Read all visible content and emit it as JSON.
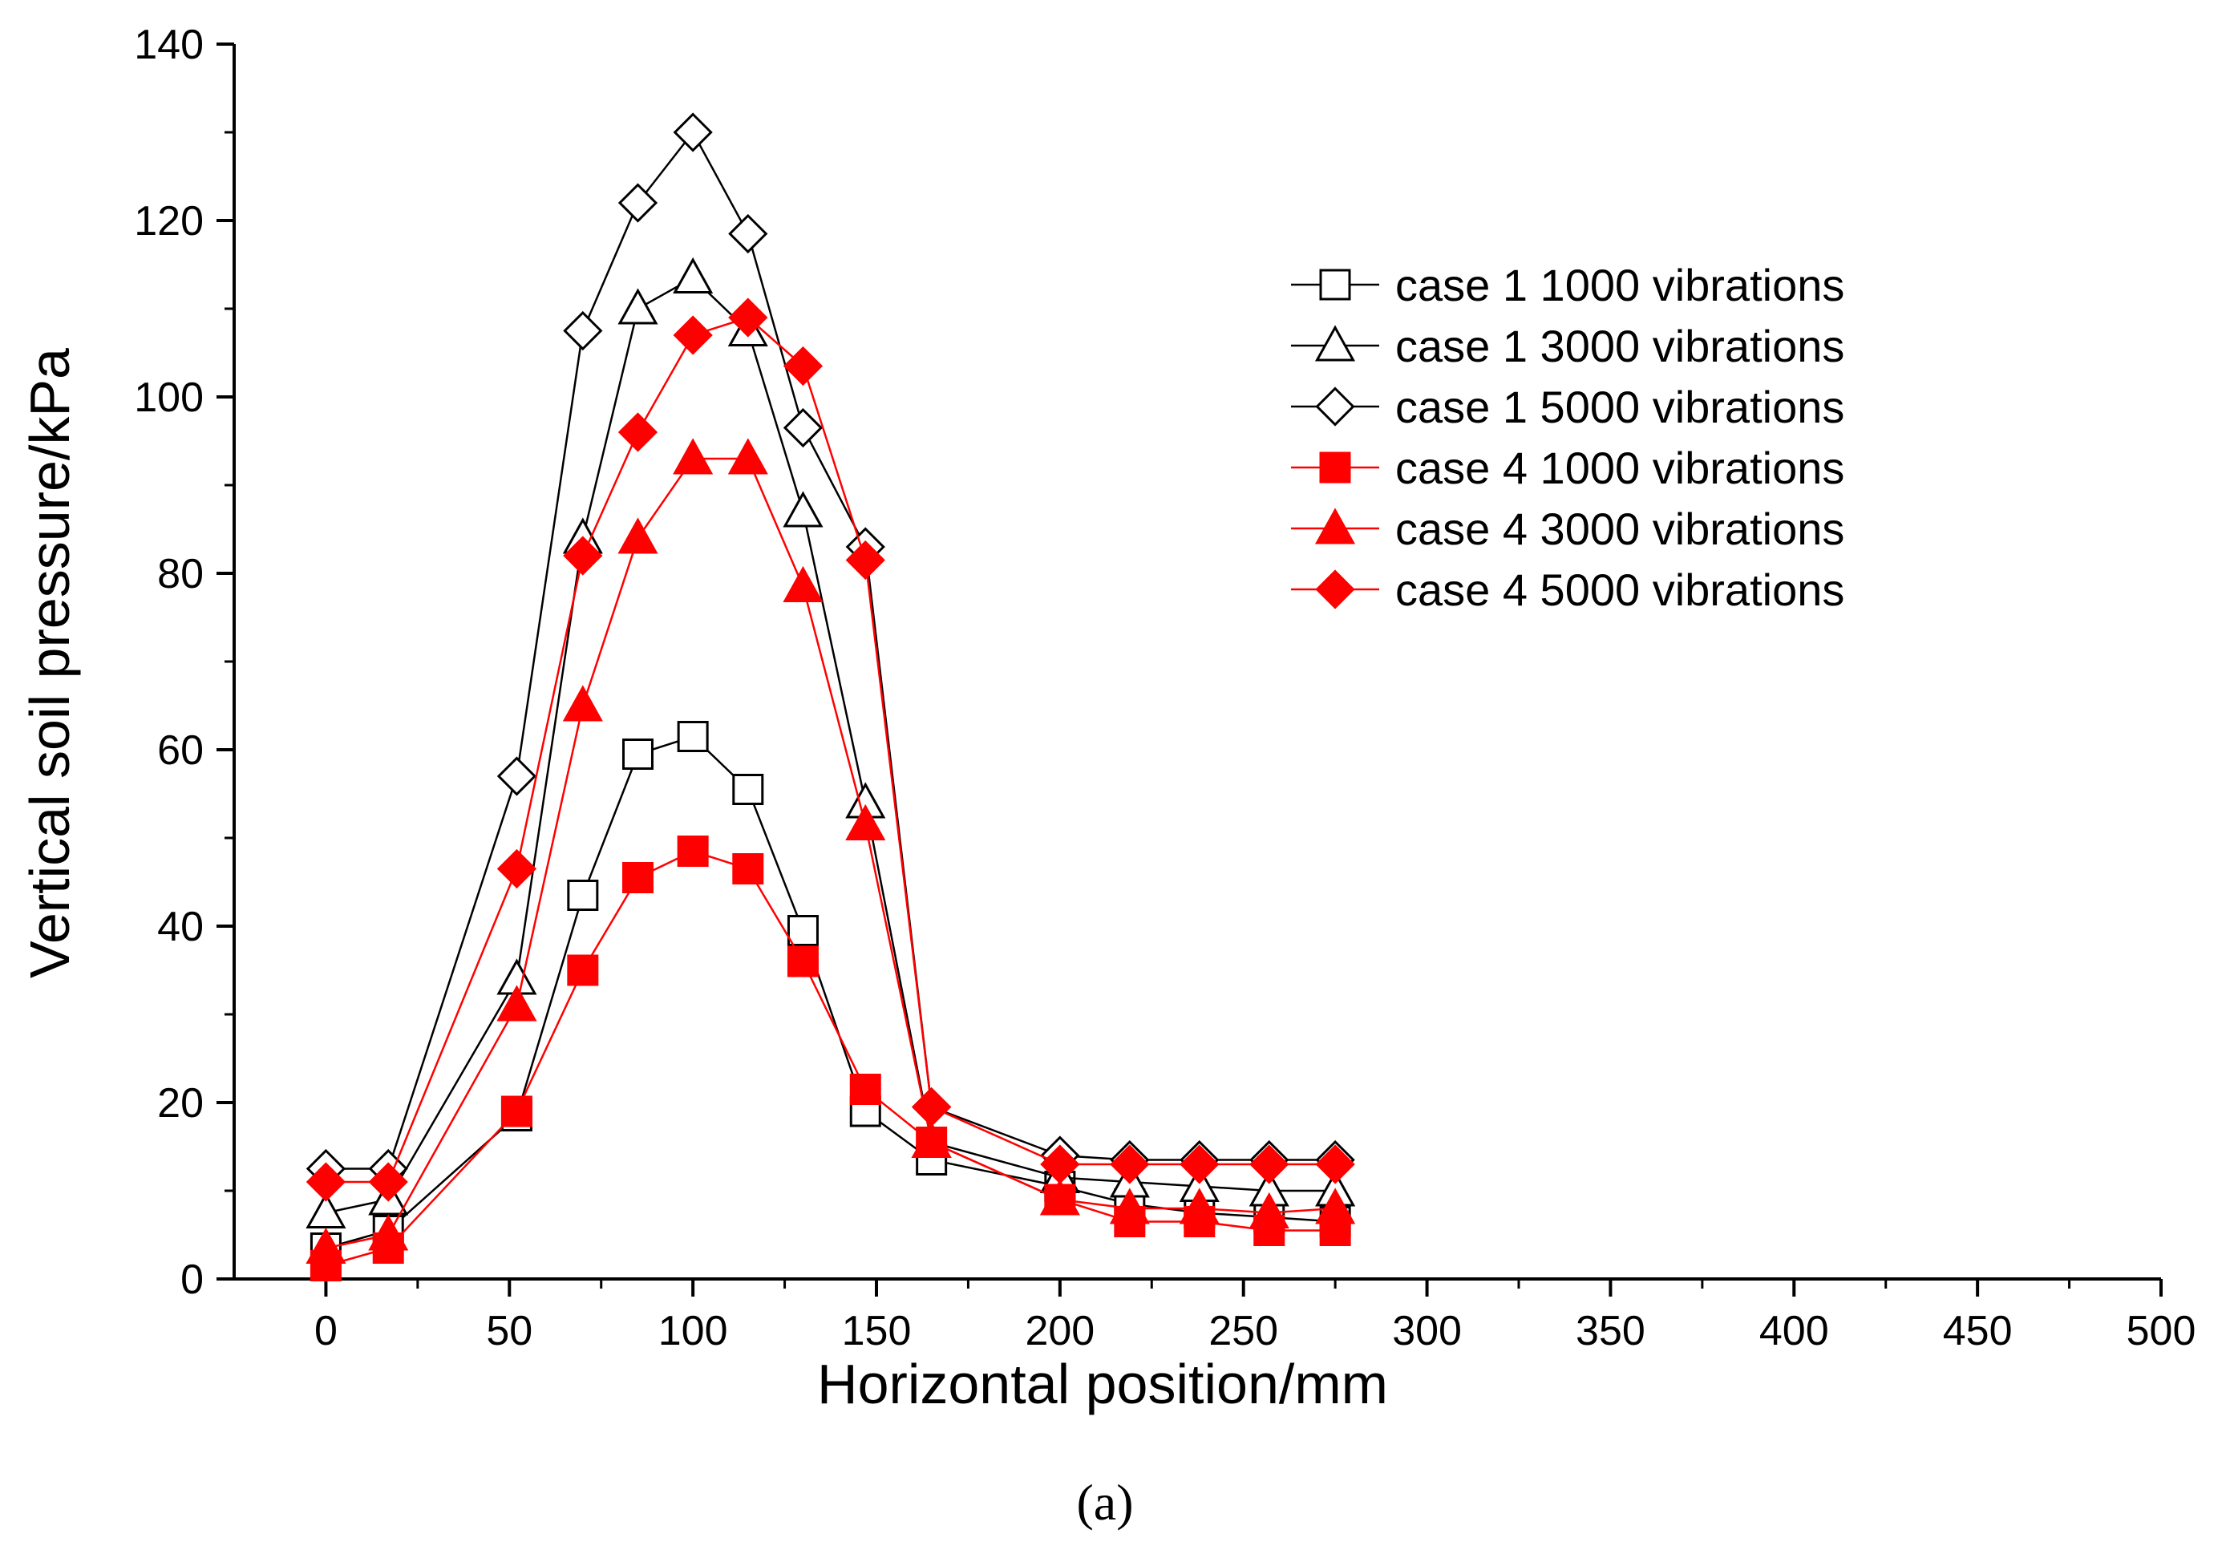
{
  "chart_data": {
    "type": "line",
    "title": "",
    "xlabel": "Horizontal position/mm",
    "ylabel": "Vertical soil pressure/kPa",
    "xlim": [
      -25,
      500
    ],
    "ylim": [
      0,
      140
    ],
    "x_ticks": [
      0,
      50,
      100,
      150,
      200,
      250,
      300,
      350,
      400,
      450,
      500
    ],
    "y_ticks": [
      0,
      20,
      40,
      60,
      80,
      100,
      120,
      140
    ],
    "x_tick_labels": [
      "0",
      "50",
      "100",
      "150",
      "200",
      "250",
      "300",
      "350",
      "400",
      "450",
      "500"
    ],
    "y_tick_labels": [
      "0",
      "20",
      "40",
      "60",
      "80",
      "100",
      "120",
      "140"
    ],
    "legend_position": "top-right",
    "x": [
      0,
      17,
      52,
      70,
      85,
      100,
      115,
      130,
      147,
      165,
      200,
      219,
      238,
      257,
      275
    ],
    "series": [
      {
        "name": "case 1 1000 vibrations",
        "color": "#000000",
        "marker": "square",
        "filled": false,
        "values": [
          3.5,
          5.5,
          18.5,
          43.5,
          59.5,
          61.5,
          55.5,
          39.5,
          19,
          13.5,
          10.5,
          8.5,
          7.5,
          7,
          6.5
        ]
      },
      {
        "name": "case 1 3000 vibrations",
        "color": "#000000",
        "marker": "triangle",
        "filled": false,
        "values": [
          7.5,
          9,
          34,
          84,
          110,
          113.5,
          107.5,
          87,
          54,
          15.5,
          11.5,
          11,
          10.5,
          10,
          10
        ]
      },
      {
        "name": "case 1 5000 vibrations",
        "color": "#000000",
        "marker": "diamond",
        "filled": false,
        "values": [
          12.5,
          12.5,
          57,
          107.5,
          122,
          130,
          118.5,
          96.5,
          83,
          19.5,
          14,
          13.5,
          13.5,
          13.5,
          13.5
        ]
      },
      {
        "name": "case 4 1000 vibrations",
        "color": "#ff0000",
        "marker": "square",
        "filled": true,
        "values": [
          1.5,
          3.5,
          19,
          35,
          45.5,
          48.5,
          46.5,
          36,
          21.5,
          15.5,
          9,
          6.5,
          6.5,
          5.5,
          5.5
        ]
      },
      {
        "name": "case 4 3000 vibrations",
        "color": "#ff0000",
        "marker": "triangle",
        "filled": true,
        "values": [
          3.5,
          5,
          31,
          65,
          84,
          93,
          93,
          78.5,
          51.5,
          15.5,
          9,
          8,
          8,
          7.5,
          8
        ]
      },
      {
        "name": "case 4 5000 vibrations",
        "color": "#ff0000",
        "marker": "diamond",
        "filled": true,
        "values": [
          11,
          11,
          46.5,
          82,
          96,
          107,
          109,
          103.5,
          81.5,
          19.5,
          13,
          13,
          13,
          13,
          13
        ]
      }
    ]
  },
  "caption": "(a)"
}
